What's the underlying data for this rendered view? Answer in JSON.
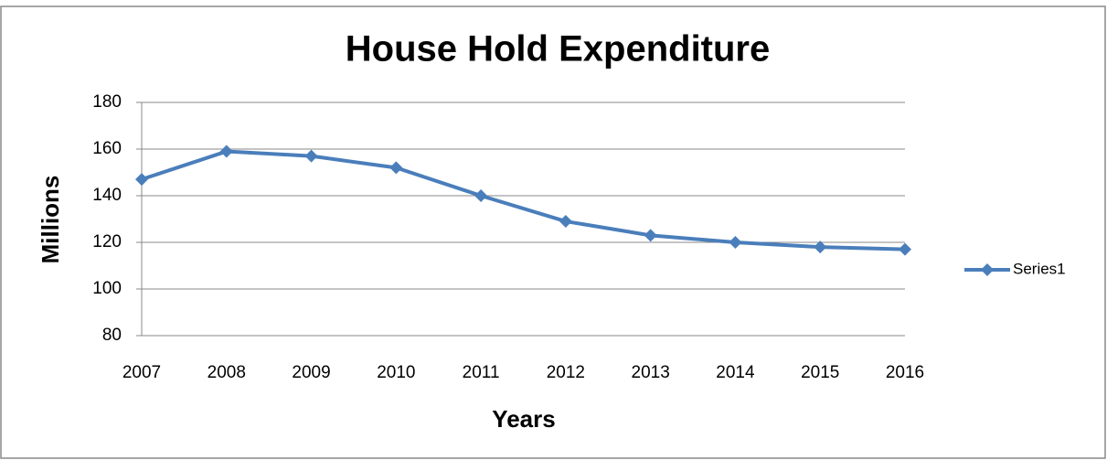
{
  "chart_data": {
    "type": "line",
    "title": "House Hold Expenditure",
    "x_label": "Years",
    "y_label": "Millions",
    "categories": [
      "2007",
      "2008",
      "2009",
      "2010",
      "2011",
      "2012",
      "2013",
      "2014",
      "2015",
      "2016"
    ],
    "series": [
      {
        "name": "Series1",
        "color": "#4a7ebb",
        "values": [
          147,
          159,
          157,
          152,
          140,
          129,
          123,
          120,
          118,
          117
        ]
      }
    ],
    "ylim": [
      80,
      180
    ],
    "yticks": [
      80,
      100,
      120,
      140,
      160,
      180
    ],
    "grid": true,
    "legend": "right"
  }
}
